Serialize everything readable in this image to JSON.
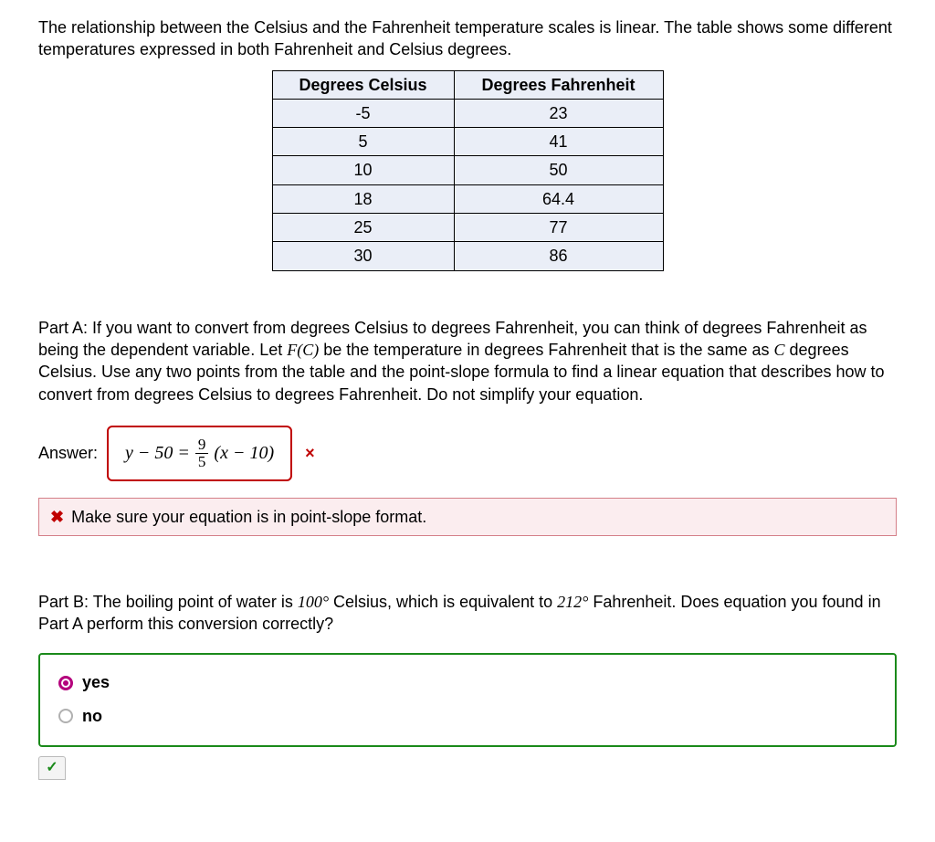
{
  "intro": "The relationship between the Celsius and the Fahrenheit temperature scales is linear. The table shows some different temperatures expressed in both Fahrenheit and Celsius degrees.",
  "table": {
    "headers": [
      "Degrees Celsius",
      "Degrees Fahrenheit"
    ],
    "rows": [
      [
        "-5",
        "23"
      ],
      [
        "5",
        "41"
      ],
      [
        "10",
        "50"
      ],
      [
        "18",
        "64.4"
      ],
      [
        "25",
        "77"
      ],
      [
        "30",
        "86"
      ]
    ],
    "cell_bg": "#eaeef7",
    "border_color": "#000000"
  },
  "partA": {
    "prefix": "Part A: If you want to convert from degrees Celsius to degrees Fahrenheit, you can think of degrees Fahrenheit as being the dependent variable. Let ",
    "fc": "F(C)",
    "mid1": " be the temperature in degrees Fahrenheit that is the same as ",
    "c": "C",
    "suffix": " degrees Celsius. Use any two points from the table and the point-slope formula to find a linear equation that describes how to convert from degrees Celsius to degrees Fahrenheit. Do not simplify your equation."
  },
  "answer": {
    "label": "Answer:",
    "lhs_left": "y − 50 = ",
    "frac_num": "9",
    "frac_den": "5",
    "rhs_right": " (x − 10)",
    "box_border": "#c00000",
    "mark": "×"
  },
  "feedback": {
    "icon": "✖",
    "text": "Make sure your equation is in point-slope format.",
    "bg": "#fbedef",
    "border": "#d47f88"
  },
  "partB": {
    "prefix": "Part B: The boiling point of water is ",
    "temp_c": "100°",
    "mid": " Celsius, which is equivalent to ",
    "temp_f": "212°",
    "suffix": " Fahrenheit. Does equation you found in Part A perform this conversion correctly?"
  },
  "choices": {
    "yes": "yes",
    "no": "no",
    "selected": "yes",
    "box_border": "#1a8a1a",
    "selected_color": "#b4007c"
  },
  "footer_check": "✓"
}
